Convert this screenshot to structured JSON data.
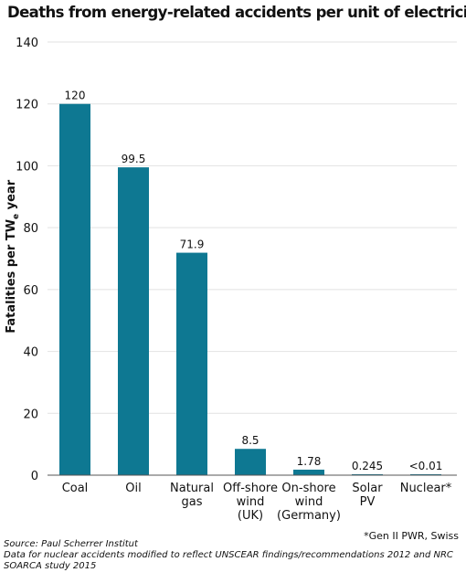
{
  "title": "Deaths from energy-related accidents per unit of electricity",
  "ylabel": {
    "main": "Fatalities per TW",
    "sub": "e",
    "tail": " year"
  },
  "footnote": "*Gen II PWR, Swiss",
  "source": "Source: Paul Scherrer Institut",
  "note_line1": "Data for nuclear accidents modified to reflect UNSCEAR findings/recommendations 2012 and NRC",
  "note_line2": "SOARCA study 2015",
  "colors": {
    "bar": "#0e7892",
    "grid": "#e2e2e2",
    "axis": "#555555"
  },
  "chart_data": {
    "type": "bar",
    "title": "Deaths from energy-related accidents per unit of electricity",
    "xlabel": "",
    "ylabel": "Fatalities per TWe year",
    "categories": [
      [
        "Coal"
      ],
      [
        "Oil"
      ],
      [
        "Natural",
        "gas"
      ],
      [
        "Off-shore",
        "wind",
        "(UK)"
      ],
      [
        "On-shore",
        "wind",
        "(Germany)"
      ],
      [
        "Solar",
        "PV"
      ],
      [
        "Nuclear*"
      ]
    ],
    "values": [
      120,
      99.5,
      71.9,
      8.5,
      1.78,
      0.245,
      0.01
    ],
    "data_labels": [
      "120",
      "99.5",
      "71.9",
      "8.5",
      "1.78",
      "0.245",
      "<0.01"
    ],
    "ylim": [
      0,
      140
    ],
    "yticks": [
      0,
      20,
      40,
      60,
      80,
      100,
      120,
      140
    ],
    "grid": true,
    "legend": "none"
  }
}
